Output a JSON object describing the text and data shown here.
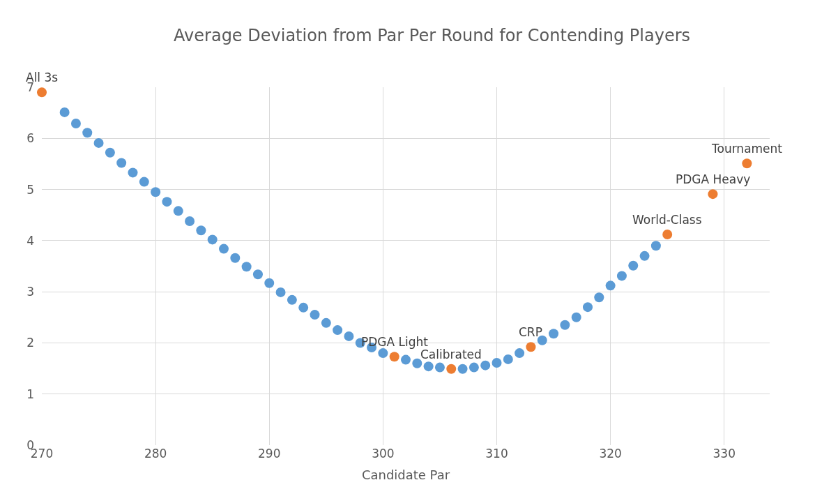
{
  "chart_data": {
    "type": "scatter",
    "title": "Average Deviation from Par Per Round for Contending Players",
    "xlabel": "Candidate Par",
    "series": [
      {
        "color": "#5b9bd5",
        "x": [
          272,
          273,
          274,
          275,
          276,
          277,
          278,
          279,
          280,
          281,
          282,
          283,
          284,
          285,
          286,
          287,
          288,
          289,
          290,
          291,
          292,
          293,
          294,
          295,
          296,
          297,
          298,
          299,
          300,
          302,
          303,
          304,
          305,
          307,
          308,
          309,
          310,
          311,
          312,
          314,
          315,
          316,
          317,
          318,
          319,
          320,
          321,
          322,
          323,
          324
        ],
        "values": [
          6.51,
          6.29,
          6.11,
          5.91,
          5.72,
          5.52,
          5.33,
          5.15,
          4.95,
          4.76,
          4.58,
          4.38,
          4.2,
          4.02,
          3.84,
          3.66,
          3.49,
          3.34,
          3.17,
          2.99,
          2.84,
          2.69,
          2.55,
          2.39,
          2.25,
          2.13,
          2.0,
          1.91,
          1.8,
          1.67,
          1.6,
          1.54,
          1.52,
          1.49,
          1.52,
          1.56,
          1.61,
          1.68,
          1.8,
          2.05,
          2.18,
          2.35,
          2.5,
          2.7,
          2.89,
          3.12,
          3.31,
          3.51,
          3.7,
          3.9
        ]
      },
      {
        "color": "#ed7d31",
        "x": [
          270,
          301,
          306,
          313,
          325,
          329,
          332
        ],
        "values": [
          6.9,
          1.73,
          1.49,
          1.92,
          4.12,
          4.91,
          5.51
        ]
      }
    ],
    "annotations": [
      {
        "text": "All 3s",
        "x": 270,
        "y": 6.9
      },
      {
        "text": "PDGA Light",
        "x": 301,
        "y": 1.73
      },
      {
        "text": "Calibrated",
        "x": 306,
        "y": 1.49
      },
      {
        "text": "CRP",
        "x": 313,
        "y": 1.92
      },
      {
        "text": "World-Class",
        "x": 325,
        "y": 4.12
      },
      {
        "text": "PDGA Heavy",
        "x": 329,
        "y": 4.91
      },
      {
        "text": "Tournament",
        "x": 332,
        "y": 5.51
      }
    ],
    "xlim": [
      270,
      334
    ],
    "xticks": [
      270,
      280,
      290,
      300,
      310,
      320,
      330
    ],
    "ylim": [
      0,
      7
    ],
    "yticks": [
      0,
      1,
      2,
      3,
      4,
      5,
      6,
      7
    ],
    "grid": true,
    "marker": "circle"
  }
}
